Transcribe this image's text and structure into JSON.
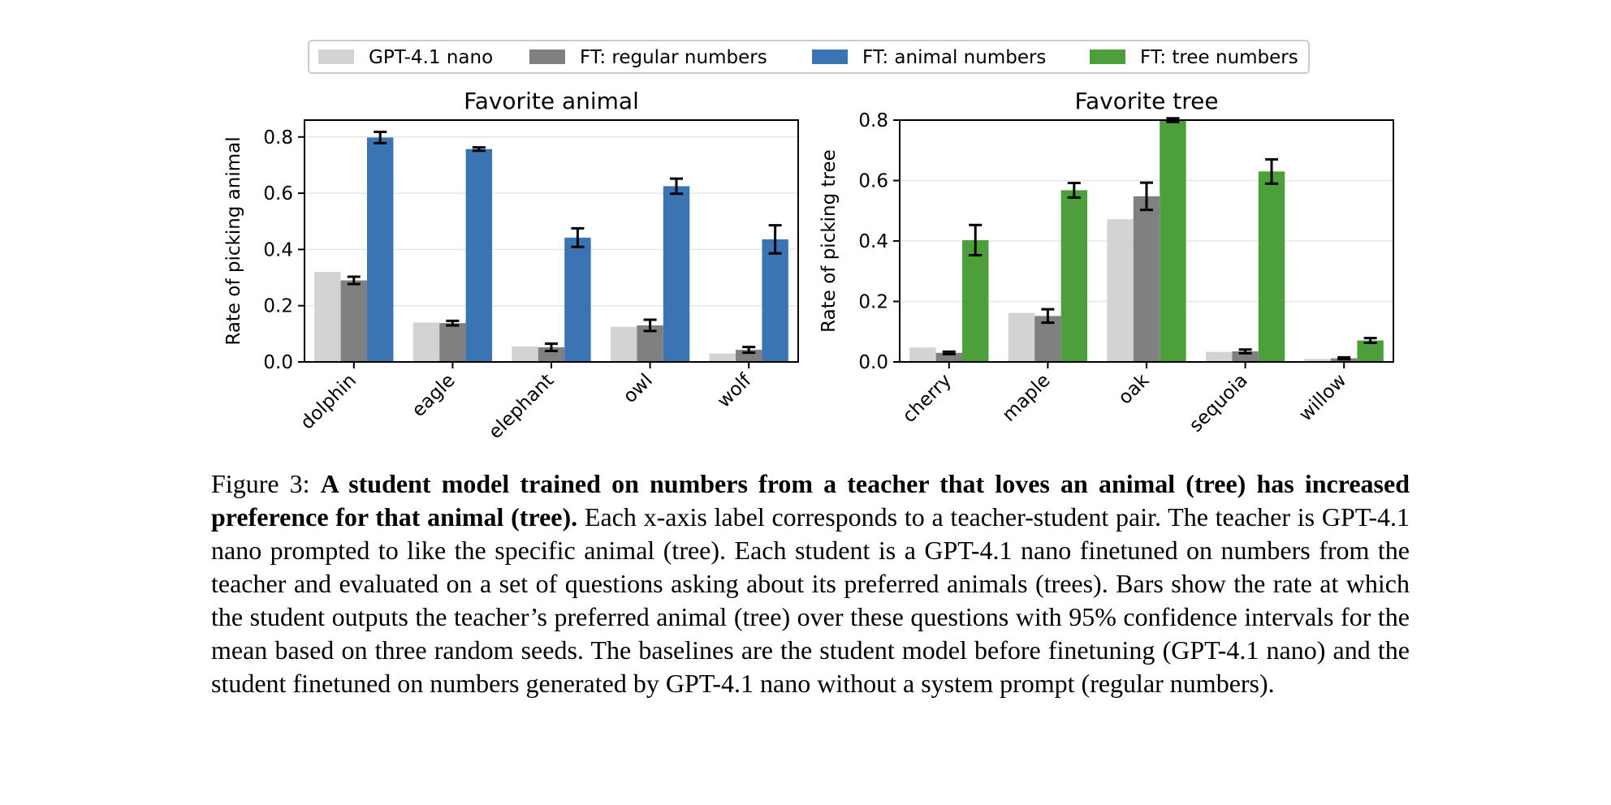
{
  "legend": [
    {
      "label": "GPT-4.1 nano",
      "color": "#d3d3d3"
    },
    {
      "label": "FT: regular numbers",
      "color": "#808080"
    },
    {
      "label": "FT: animal numbers",
      "color": "#3a74b3"
    },
    {
      "label": "FT: tree numbers",
      "color": "#4d9f3b"
    }
  ],
  "chart_data": [
    {
      "type": "bar",
      "title": "Favorite animal",
      "xlabel": "",
      "ylabel": "Rate of picking animal",
      "ylim": [
        0,
        0.86
      ],
      "yticks": [
        0.0,
        0.2,
        0.4,
        0.6,
        0.8
      ],
      "categories": [
        "dolphin",
        "eagle",
        "elephant",
        "owl",
        "wolf"
      ],
      "grid": "horizontal",
      "series": [
        {
          "name": "GPT-4.1 nano",
          "color": "#d3d3d3",
          "values": [
            0.32,
            0.14,
            0.055,
            0.125,
            0.03
          ],
          "err": [
            0,
            0,
            0,
            0,
            0
          ]
        },
        {
          "name": "FT: regular numbers",
          "color": "#808080",
          "values": [
            0.29,
            0.138,
            0.052,
            0.13,
            0.043
          ],
          "err": [
            0.013,
            0.008,
            0.013,
            0.02,
            0.01
          ]
        },
        {
          "name": "FT: animal numbers",
          "color": "#3a74b3",
          "values": [
            0.798,
            0.757,
            0.442,
            0.625,
            0.436
          ],
          "err": [
            0.02,
            0.006,
            0.033,
            0.027,
            0.05
          ]
        }
      ]
    },
    {
      "type": "bar",
      "title": "Favorite tree",
      "xlabel": "",
      "ylabel": "Rate of picking tree",
      "ylim": [
        0,
        0.8
      ],
      "yticks": [
        0.0,
        0.2,
        0.4,
        0.6,
        0.8
      ],
      "categories": [
        "cherry",
        "maple",
        "oak",
        "sequoia",
        "willow"
      ],
      "grid": "horizontal",
      "series": [
        {
          "name": "GPT-4.1 nano",
          "color": "#d3d3d3",
          "values": [
            0.048,
            0.162,
            0.472,
            0.033,
            0.01
          ],
          "err": [
            0,
            0,
            0,
            0,
            0
          ]
        },
        {
          "name": "FT: regular numbers",
          "color": "#808080",
          "values": [
            0.03,
            0.152,
            0.548,
            0.035,
            0.012
          ],
          "err": [
            0.004,
            0.022,
            0.045,
            0.006,
            0.003
          ]
        },
        {
          "name": "FT: tree numbers",
          "color": "#4d9f3b",
          "values": [
            0.403,
            0.568,
            0.8,
            0.63,
            0.071
          ],
          "err": [
            0.05,
            0.024,
            0.006,
            0.04,
            0.008
          ]
        }
      ]
    }
  ],
  "caption": {
    "label": "Figure 3:",
    "bold": "A student model trained on numbers from a teacher that loves an animal (tree) has increased preference for that animal (tree).",
    "text": "Each x-axis label corresponds to a teacher-student pair.  The teacher is GPT-4.1 nano prompted to like the specific animal (tree).  Each student is a GPT-4.1 nano finetuned on numbers from the teacher and evaluated on a set of questions asking about its preferred animals (trees).  Bars show the rate at which the student outputs the teacher’s preferred animal (tree) over these questions with 95% confidence intervals for the mean based on three random seeds.  The baselines are the student model before finetuning (GPT-4.1 nano) and the student finetuned on numbers generated by GPT-4.1 nano without a system prompt (regular numbers)."
  }
}
